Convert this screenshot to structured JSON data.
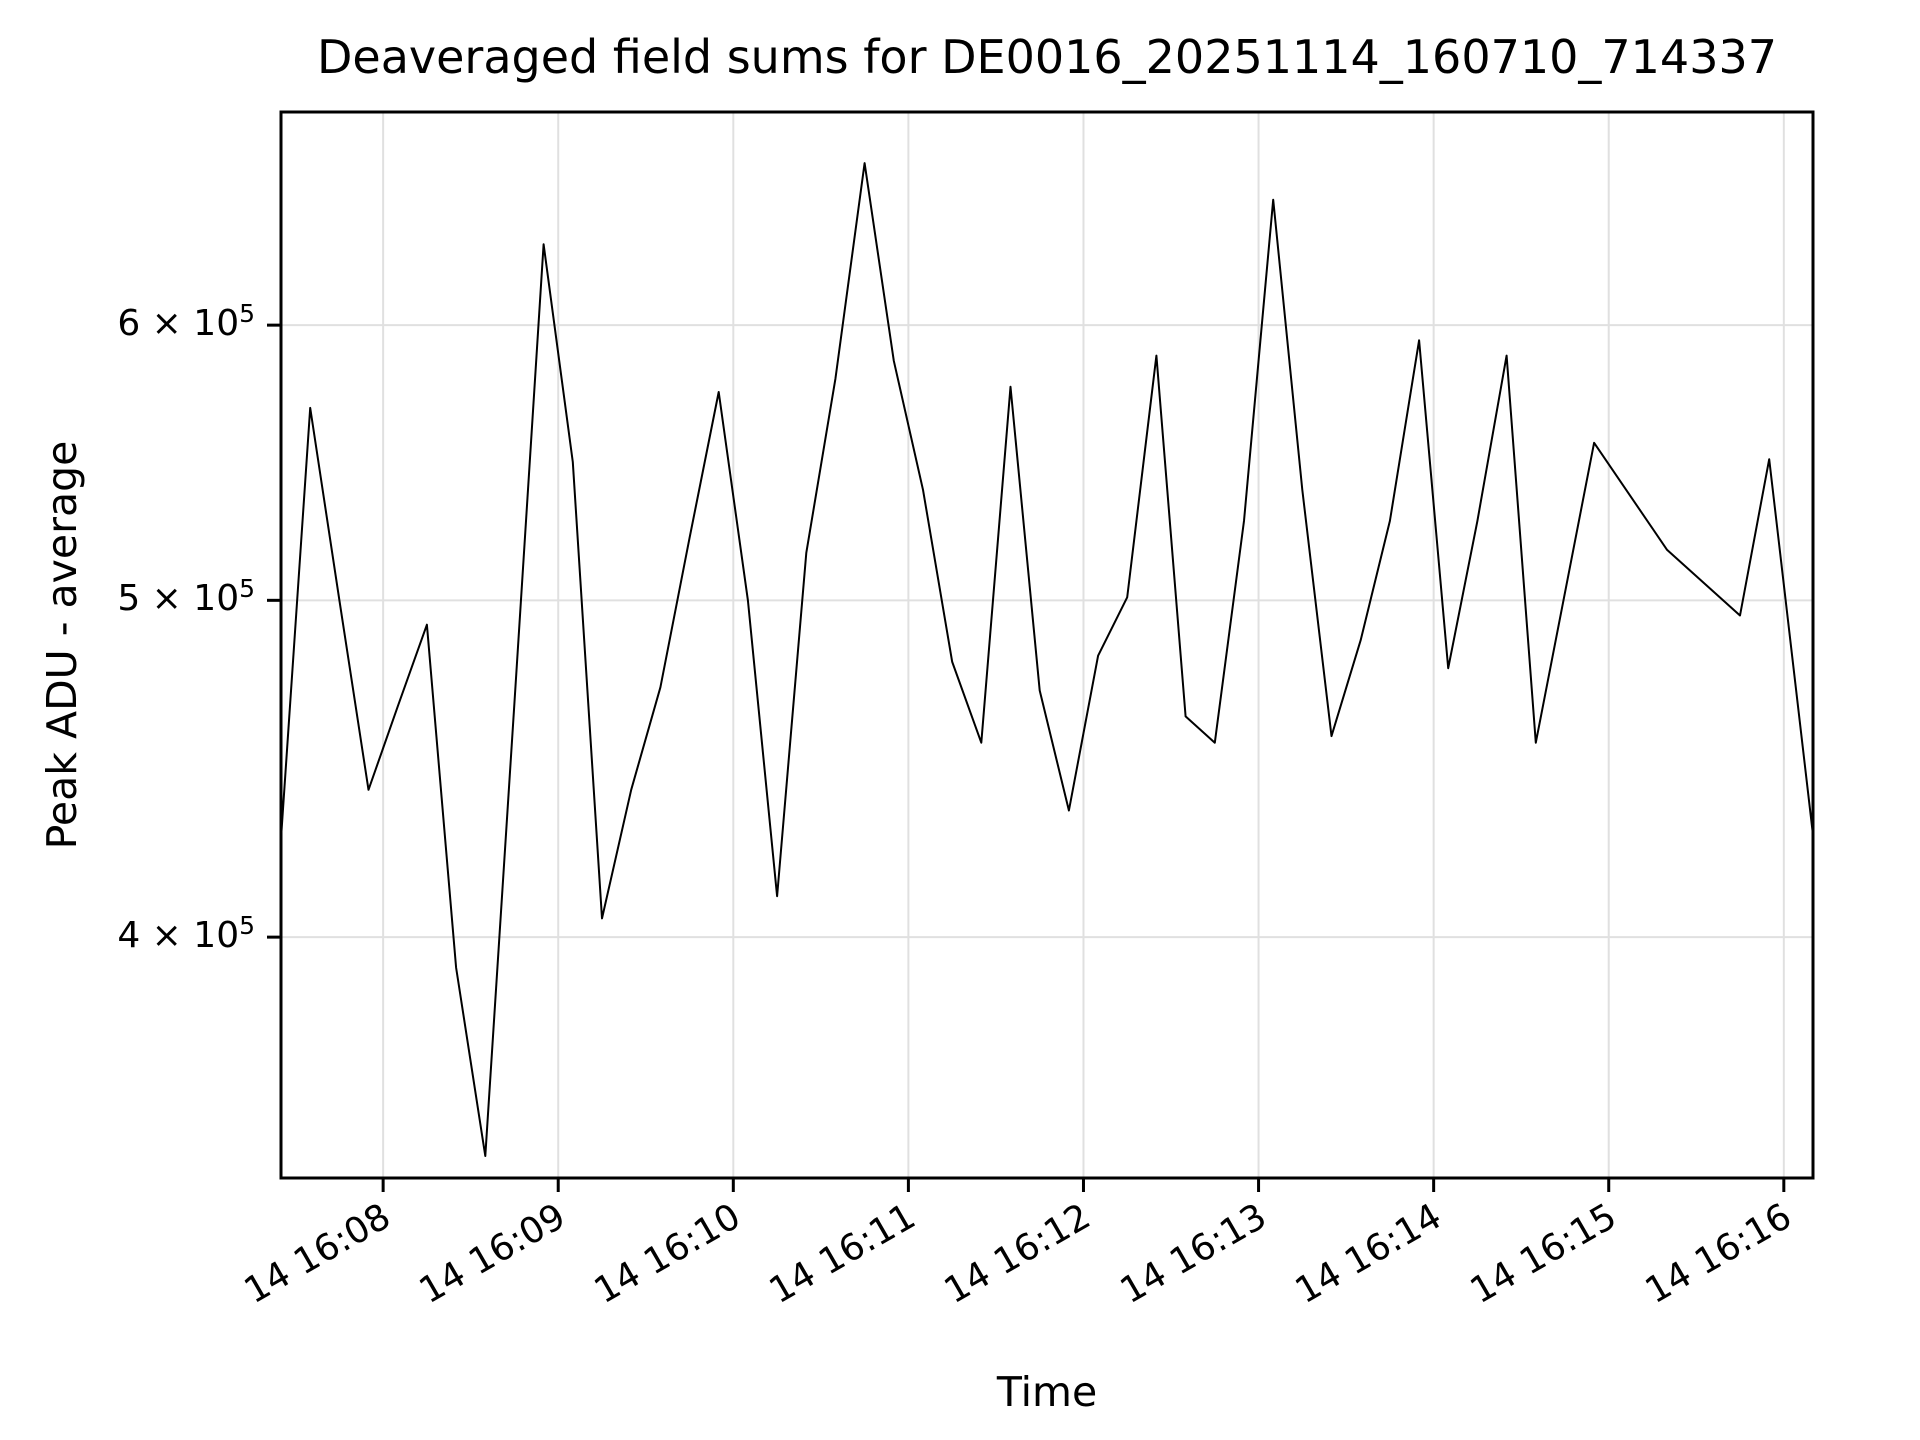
{
  "figure": {
    "title": "Deaveraged field sums for DE0016_20251114_160710_714337",
    "xlabel": "Time",
    "ylabel": "Peak ADU - average"
  },
  "chart_data": {
    "type": "line",
    "title": "Deaveraged field sums for DE0016_20251114_160710_714337",
    "xlabel": "Time",
    "ylabel": "Peak ADU - average",
    "yscale": "log",
    "grid": true,
    "legend": "none",
    "line_color": "#000000",
    "grid_color": "#e0e0e0",
    "x_tick_labels": [
      "14 16:08",
      "14 16:09",
      "14 16:10",
      "14 16:11",
      "14 16:12",
      "14 16:13",
      "14 16:14",
      "14 16:15",
      "14 16:16"
    ],
    "x_tick_seconds": [
      0,
      60,
      120,
      180,
      240,
      300,
      360,
      420,
      480
    ],
    "x_reference": "day 14, 16:08:00",
    "y_ticks": [
      {
        "value": 400000,
        "base": "4 × 10",
        "exp": "5"
      },
      {
        "value": 500000,
        "base": "5 × 10",
        "exp": "5"
      },
      {
        "value": 600000,
        "base": "6 × 10",
        "exp": "5"
      }
    ],
    "xlim_seconds": [
      -35,
      490
    ],
    "ylim": [
      341000,
      691000
    ],
    "x_seconds": [
      -35,
      -25,
      -15,
      -5,
      5,
      15,
      25,
      35,
      45,
      55,
      65,
      75,
      85,
      95,
      105,
      115,
      125,
      135,
      145,
      155,
      165,
      175,
      185,
      195,
      205,
      215,
      225,
      235,
      245,
      255,
      265,
      275,
      285,
      295,
      305,
      315,
      325,
      335,
      345,
      355,
      365,
      375,
      385,
      395,
      415,
      440,
      465,
      475,
      490
    ],
    "values": [
      427000,
      568000,
      500000,
      441000,
      466000,
      492000,
      392000,
      346000,
      467000,
      633000,
      548000,
      405000,
      441000,
      472000,
      521000,
      574000,
      500000,
      411000,
      516000,
      579000,
      668000,
      586000,
      538000,
      480000,
      455000,
      576000,
      471000,
      435000,
      482000,
      501000,
      588000,
      463000,
      455000,
      527000,
      652000,
      538000,
      457000,
      487000,
      527000,
      594000,
      478000,
      527000,
      588000,
      455000,
      555000,
      517000,
      495000,
      549000,
      428000
    ]
  }
}
